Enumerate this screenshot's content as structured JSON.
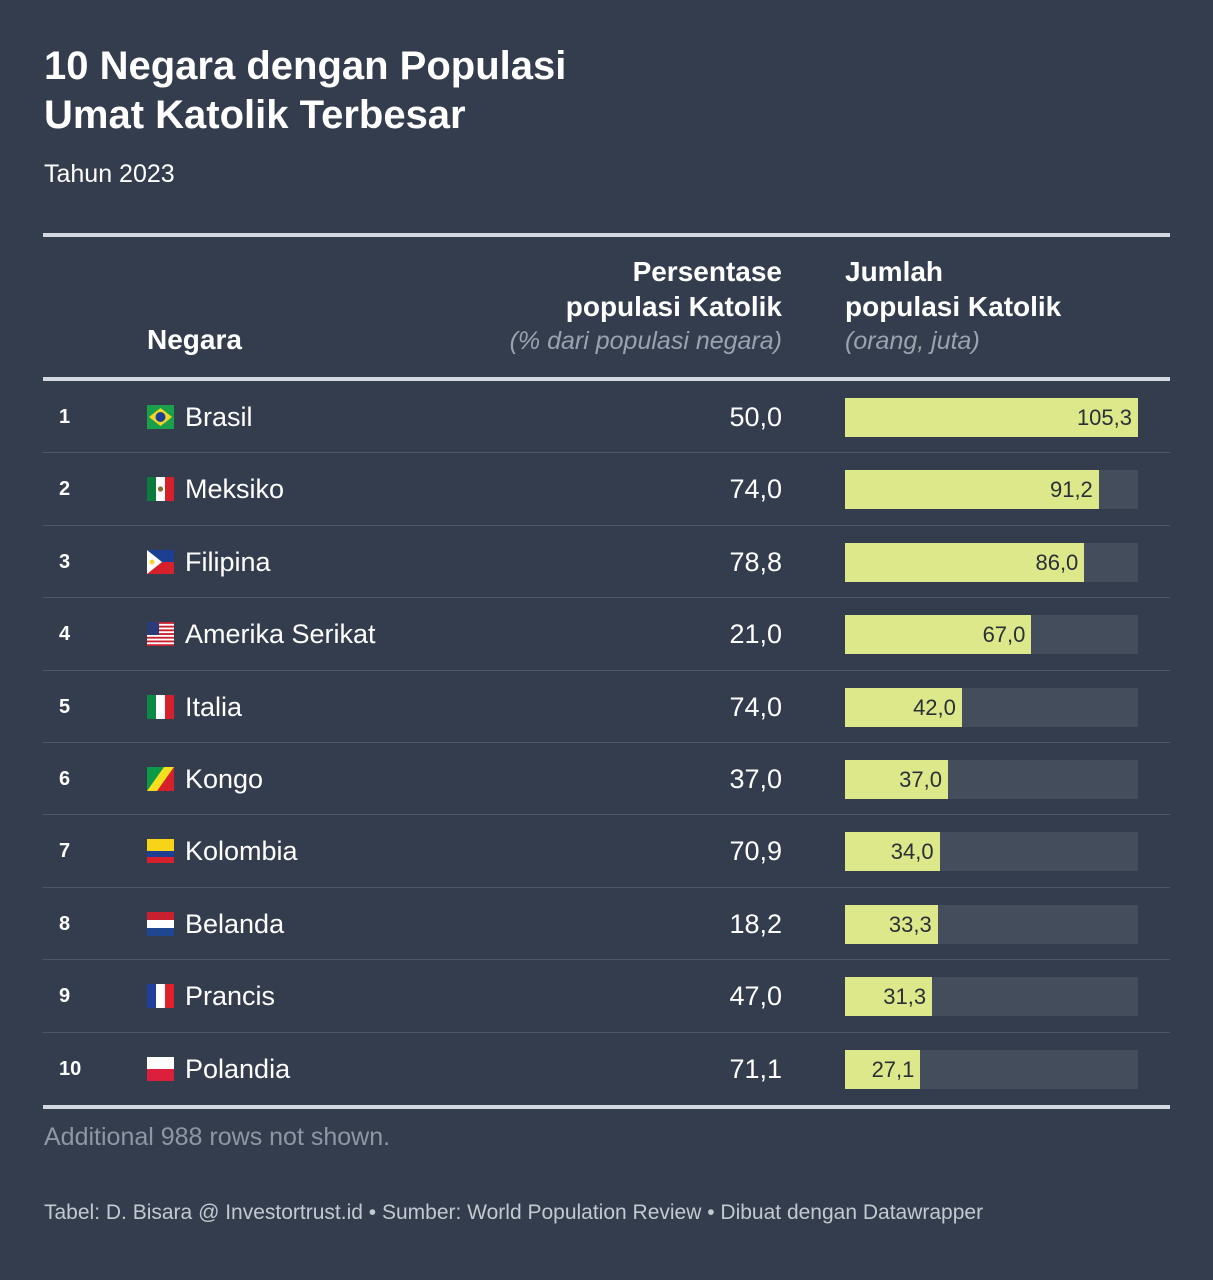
{
  "title_line1": "10 Negara dengan Populasi",
  "title_line2": "Umat Katolik Terbesar",
  "subtitle": "Tahun 2023",
  "headers": {
    "country": "Negara",
    "pct_line1": "Persentase",
    "pct_line2": "populasi Katolik",
    "pct_note": "(% dari populasi negara)",
    "count_line1": "Jumlah",
    "count_line2": "populasi Katolik",
    "count_note": "(orang, juta)"
  },
  "chart_data": {
    "type": "table",
    "title": "10 Negara dengan Populasi Umat Katolik Terbesar",
    "subtitle": "Tahun 2023",
    "bar_max": 105.3,
    "rows": [
      {
        "rank": "1",
        "country": "Brasil",
        "flag": "flag-brazil",
        "pct": "50,0",
        "count": "105,3",
        "count_value": 105.3
      },
      {
        "rank": "2",
        "country": "Meksiko",
        "flag": "flag-mexico",
        "pct": "74,0",
        "count": "91,2",
        "count_value": 91.2
      },
      {
        "rank": "3",
        "country": "Filipina",
        "flag": "flag-philippines",
        "pct": "78,8",
        "count": "86,0",
        "count_value": 86.0
      },
      {
        "rank": "4",
        "country": "Amerika Serikat",
        "flag": "flag-united-states",
        "pct": "21,0",
        "count": "67,0",
        "count_value": 67.0
      },
      {
        "rank": "5",
        "country": "Italia",
        "flag": "flag-italy",
        "pct": "74,0",
        "count": "42,0",
        "count_value": 42.0
      },
      {
        "rank": "6",
        "country": "Kongo",
        "flag": "flag-congo",
        "pct": "37,0",
        "count": "37,0",
        "count_value": 37.0
      },
      {
        "rank": "7",
        "country": "Kolombia",
        "flag": "flag-colombia",
        "pct": "70,9",
        "count": "34,0",
        "count_value": 34.0
      },
      {
        "rank": "8",
        "country": "Belanda",
        "flag": "flag-netherlands",
        "pct": "18,2",
        "count": "33,3",
        "count_value": 33.3
      },
      {
        "rank": "9",
        "country": "Prancis",
        "flag": "flag-france",
        "pct": "47,0",
        "count": "31,3",
        "count_value": 31.3
      },
      {
        "rank": "10",
        "country": "Polandia",
        "flag": "flag-poland",
        "pct": "71,1",
        "count": "27,1",
        "count_value": 27.1
      }
    ]
  },
  "notes": "Additional 988 rows not shown.",
  "footer": "Tabel: D. Bisara @ Investortrust.id • Sumber: World Population Review • Dibuat dengan Datawrapper",
  "colors": {
    "background": "#333d4d",
    "bar_fill": "#dde88a",
    "bar_track": "#434d5b"
  }
}
